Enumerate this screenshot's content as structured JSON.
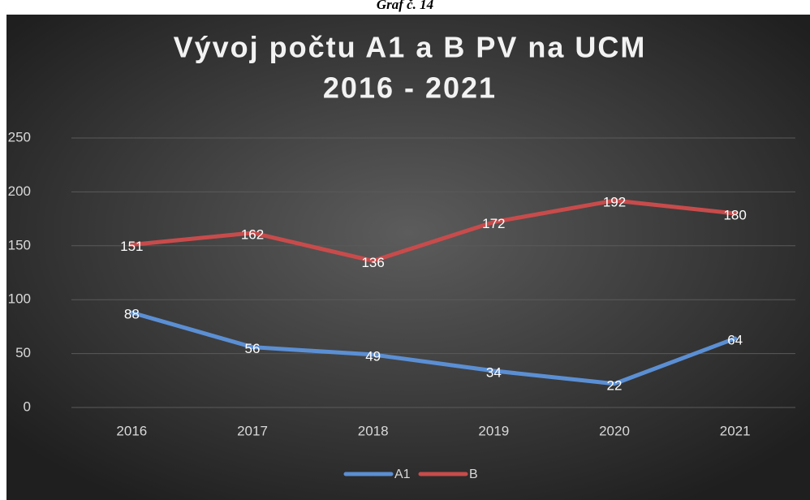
{
  "caption": "Graf č. 14",
  "chart_data": {
    "type": "line",
    "title": [
      "Vývoj počtu A1 a B PV na UCM",
      "2016 - 2021"
    ],
    "categories": [
      "2016",
      "2017",
      "2018",
      "2019",
      "2020",
      "2021"
    ],
    "series": [
      {
        "name": "A1",
        "color": "#5b8fd4",
        "values": [
          88,
          56,
          49,
          34,
          22,
          64
        ]
      },
      {
        "name": "B",
        "color": "#c84b4b",
        "values": [
          151,
          162,
          136,
          172,
          192,
          180
        ]
      }
    ],
    "ylim": [
      0,
      250
    ],
    "yticks": [
      0,
      50,
      100,
      150,
      200,
      250
    ],
    "grid": true,
    "legend": "bottom"
  }
}
